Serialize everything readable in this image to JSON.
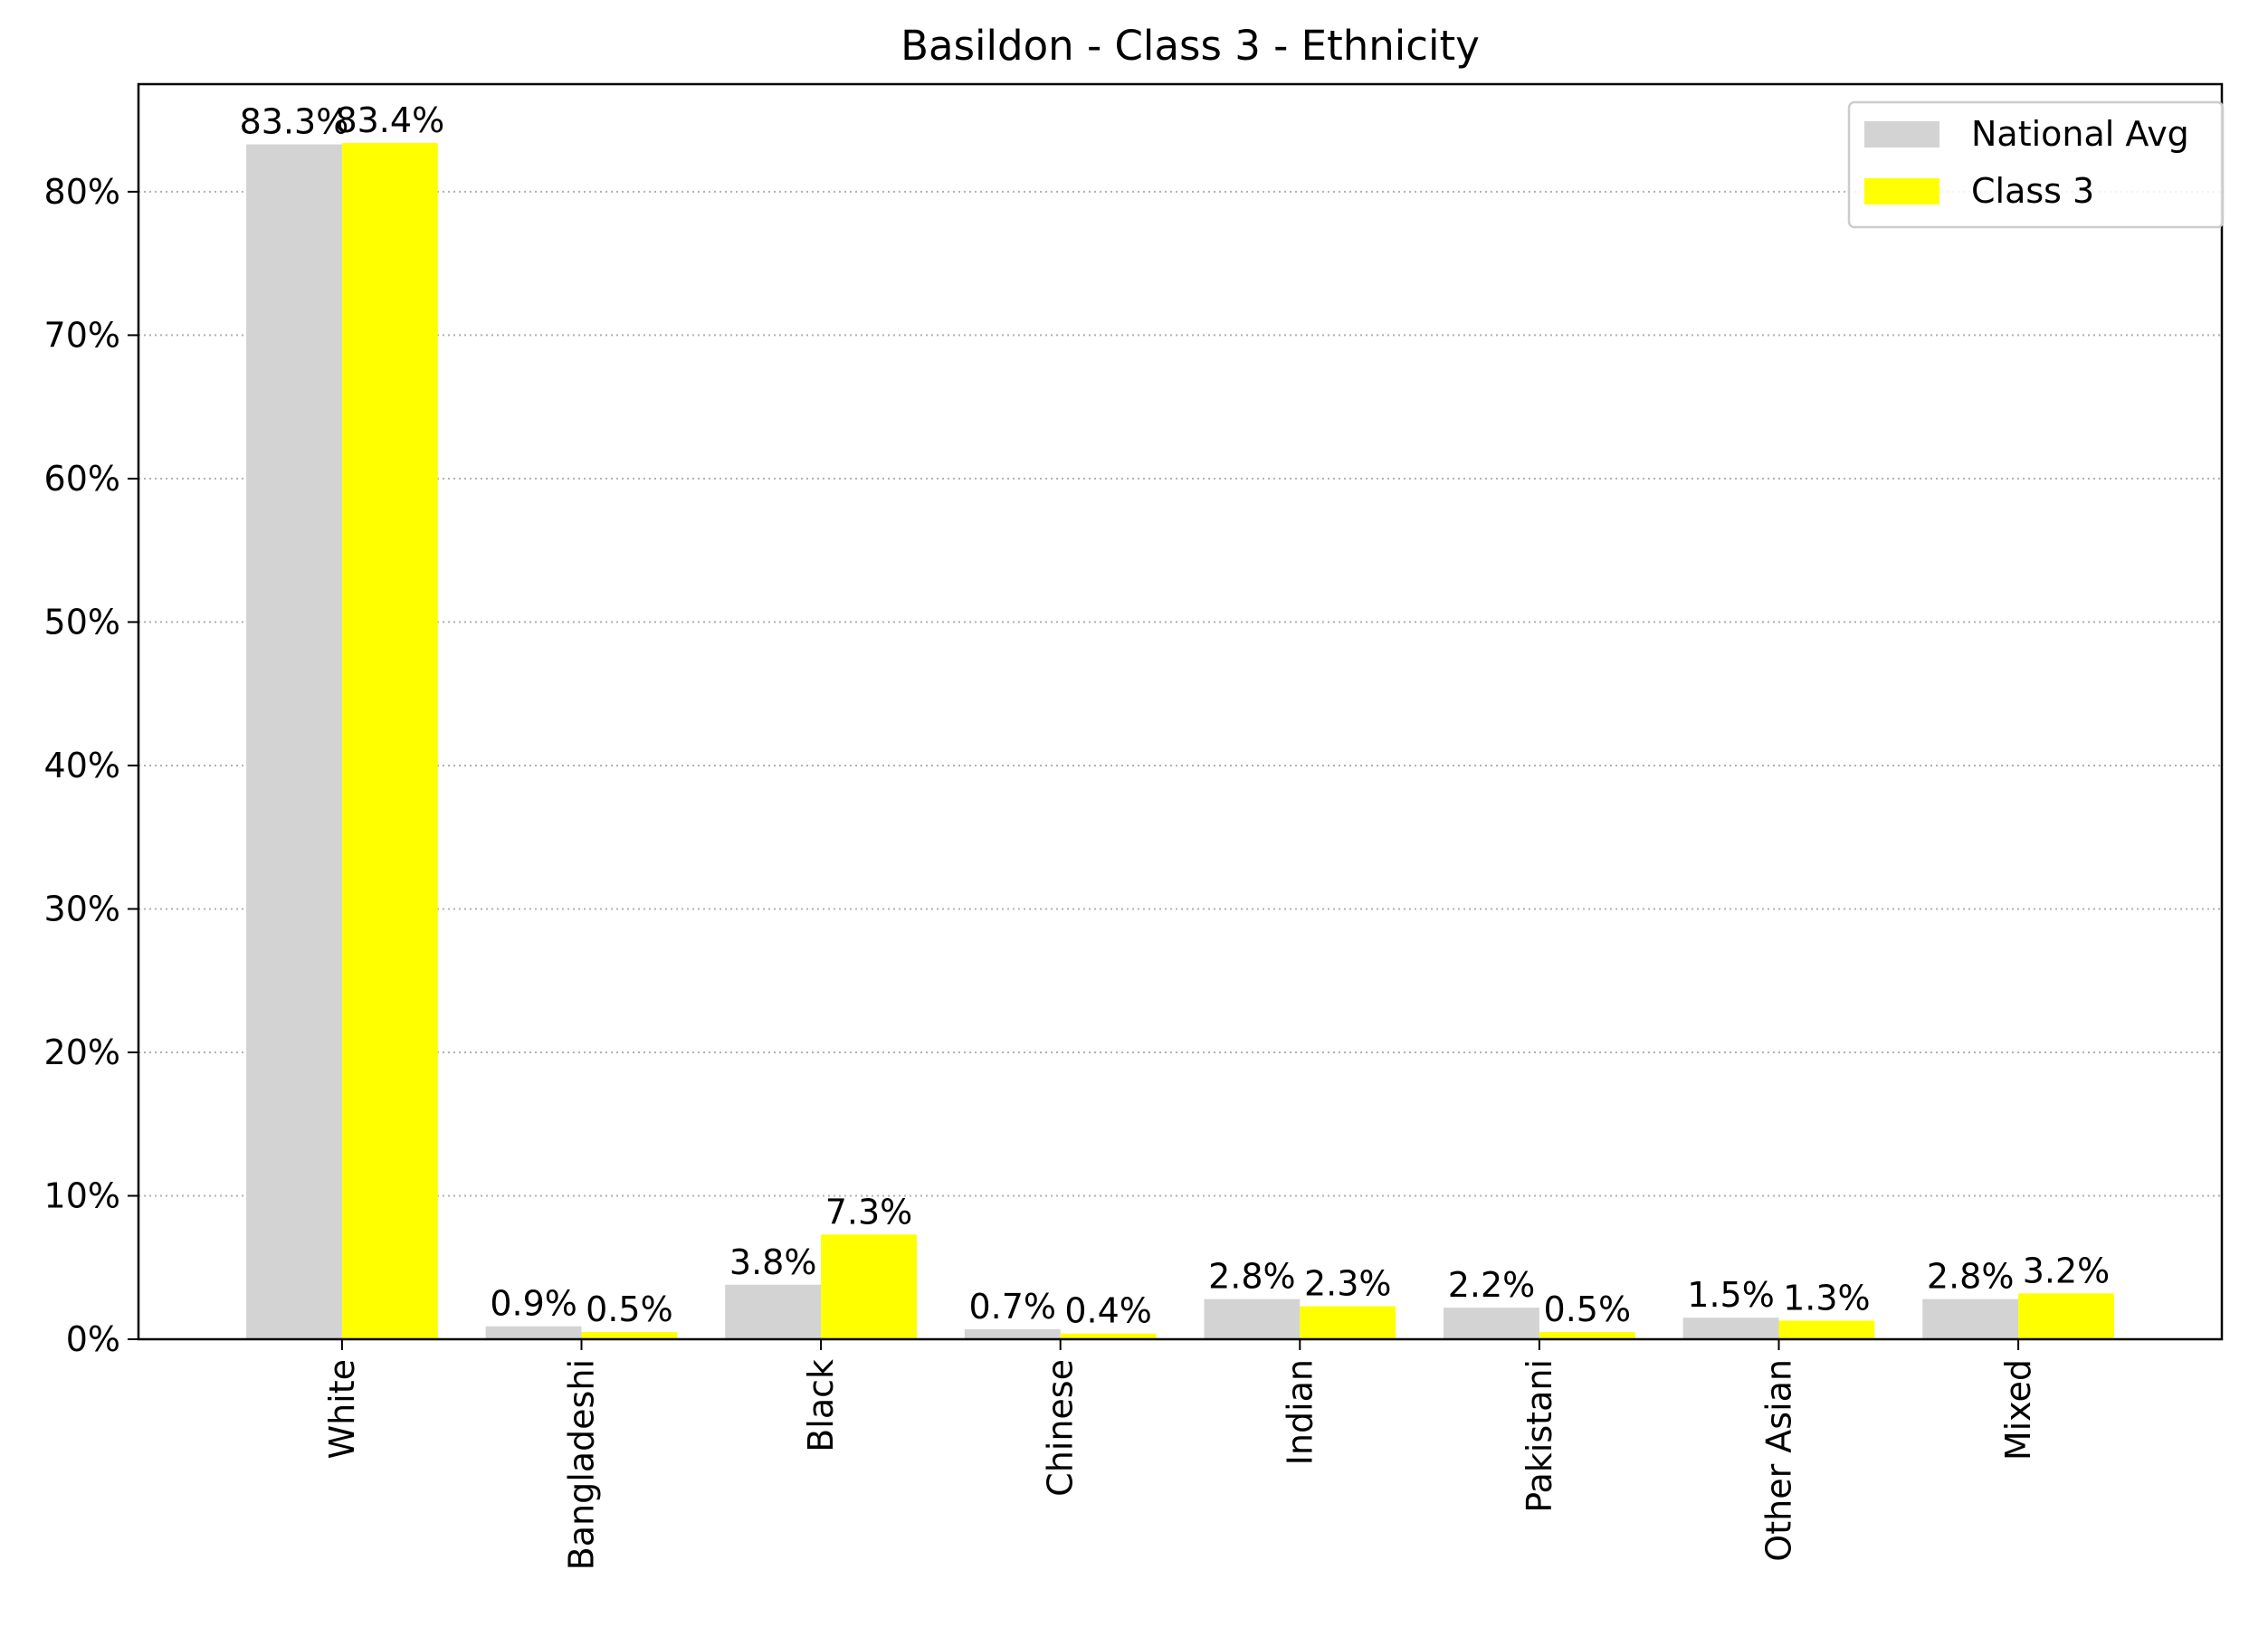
{
  "chart_data": {
    "type": "bar",
    "title": "Basildon - Class 3 - Ethnicity",
    "xlabel": "",
    "ylabel": "",
    "categories": [
      "White",
      "Bangladeshi",
      "Black",
      "Chinese",
      "Indian",
      "Pakistani",
      "Other Asian",
      "Mixed"
    ],
    "series": [
      {
        "name": "National Avg",
        "color": "#d3d3d3",
        "values": [
          83.3,
          0.9,
          3.8,
          0.7,
          2.8,
          2.2,
          1.5,
          2.8
        ],
        "labels": [
          "83.3%",
          "0.9%",
          "3.8%",
          "0.7%",
          "2.8%",
          "2.2%",
          "1.5%",
          "2.8%"
        ]
      },
      {
        "name": "Class 3",
        "color": "#ffff00",
        "values": [
          83.4,
          0.5,
          7.3,
          0.4,
          2.3,
          0.5,
          1.3,
          3.2
        ],
        "labels": [
          "83.4%",
          "0.5%",
          "7.3%",
          "0.4%",
          "2.3%",
          "0.5%",
          "1.3%",
          "3.2%"
        ]
      }
    ],
    "ylim": [
      0,
      87.5
    ],
    "yticks": [
      0,
      10,
      20,
      30,
      40,
      50,
      60,
      70,
      80
    ],
    "ytick_labels": [
      "0%",
      "10%",
      "20%",
      "30%",
      "40%",
      "50%",
      "60%",
      "70%",
      "80%"
    ],
    "grid": "y-dotted",
    "legend": "top-right",
    "xtick_rotation": "vertical"
  }
}
